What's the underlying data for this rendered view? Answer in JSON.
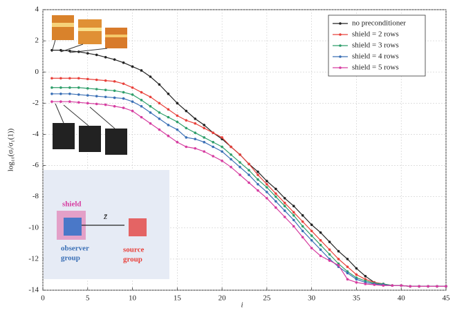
{
  "chart_data": {
    "type": "line",
    "x_label": "i",
    "y_label": "log₁₀(σᵢ/σ₁(1))",
    "x": [
      1,
      2,
      3,
      4,
      5,
      6,
      7,
      8,
      9,
      10,
      11,
      12,
      13,
      14,
      15,
      16,
      17,
      18,
      19,
      20,
      21,
      22,
      23,
      24,
      25,
      26,
      27,
      28,
      29,
      30,
      31,
      32,
      33,
      34,
      35,
      36,
      37,
      38,
      39,
      40,
      41,
      42,
      43,
      44,
      45
    ],
    "series": [
      {
        "name": "no preconditioner",
        "color": "#222222",
        "values": [
          1.4,
          1.4,
          1.35,
          1.3,
          1.2,
          1.1,
          0.95,
          0.8,
          0.6,
          0.35,
          0.1,
          -0.3,
          -0.8,
          -1.4,
          -2.0,
          -2.5,
          -3.0,
          -3.4,
          -3.9,
          -4.3,
          -4.8,
          -5.3,
          -5.9,
          -6.4,
          -7.0,
          -7.5,
          -8.1,
          -8.6,
          -9.2,
          -9.8,
          -10.3,
          -10.9,
          -11.5,
          -12.0,
          -12.6,
          -13.1,
          -13.5,
          -13.6,
          -13.7,
          -13.7,
          -13.75,
          -13.75,
          -13.75,
          -13.75,
          -13.75
        ]
      },
      {
        "name": "shield = 2 rows",
        "color": "#e8403a",
        "values": [
          -0.4,
          -0.4,
          -0.4,
          -0.4,
          -0.45,
          -0.5,
          -0.55,
          -0.6,
          -0.75,
          -1.0,
          -1.3,
          -1.6,
          -2.0,
          -2.4,
          -2.8,
          -3.1,
          -3.3,
          -3.6,
          -3.9,
          -4.2,
          -4.8,
          -5.3,
          -5.9,
          -6.6,
          -7.2,
          -7.8,
          -8.4,
          -9.0,
          -9.6,
          -10.2,
          -10.8,
          -11.4,
          -12.0,
          -12.5,
          -13.0,
          -13.3,
          -13.5,
          -13.6,
          -13.7,
          -13.7,
          -13.75,
          -13.75,
          -13.75,
          -13.75,
          -13.75
        ]
      },
      {
        "name": "shield = 3 rows",
        "color": "#2e9e6a",
        "values": [
          -1.0,
          -1.0,
          -1.0,
          -1.0,
          -1.05,
          -1.1,
          -1.15,
          -1.2,
          -1.3,
          -1.45,
          -1.8,
          -2.2,
          -2.6,
          -2.9,
          -3.2,
          -3.6,
          -3.9,
          -4.2,
          -4.5,
          -4.8,
          -5.3,
          -5.8,
          -6.3,
          -6.9,
          -7.4,
          -8.0,
          -8.6,
          -9.2,
          -9.9,
          -10.5,
          -11.1,
          -11.7,
          -12.3,
          -12.8,
          -13.2,
          -13.4,
          -13.55,
          -13.6,
          -13.7,
          -13.7,
          -13.75,
          -13.75,
          -13.75,
          -13.75,
          -13.75
        ]
      },
      {
        "name": "shield = 4 rows",
        "color": "#3a6fb5",
        "values": [
          -1.4,
          -1.4,
          -1.4,
          -1.45,
          -1.5,
          -1.55,
          -1.6,
          -1.65,
          -1.7,
          -1.9,
          -2.2,
          -2.6,
          -3.0,
          -3.4,
          -3.7,
          -4.2,
          -4.3,
          -4.5,
          -4.8,
          -5.1,
          -5.6,
          -6.1,
          -6.6,
          -7.2,
          -7.7,
          -8.3,
          -8.9,
          -9.5,
          -10.2,
          -10.8,
          -11.4,
          -12.0,
          -12.5,
          -12.9,
          -13.3,
          -13.5,
          -13.6,
          -13.65,
          -13.7,
          -13.7,
          -13.75,
          -13.75,
          -13.75,
          -13.75,
          -13.75
        ]
      },
      {
        "name": "shield = 5 rows",
        "color": "#d63ca0",
        "values": [
          -1.9,
          -1.9,
          -1.9,
          -1.95,
          -2.0,
          -2.05,
          -2.1,
          -2.2,
          -2.3,
          -2.5,
          -2.9,
          -3.3,
          -3.7,
          -4.1,
          -4.5,
          -4.8,
          -4.9,
          -5.1,
          -5.4,
          -5.7,
          -6.1,
          -6.6,
          -7.1,
          -7.6,
          -8.1,
          -8.7,
          -9.3,
          -9.9,
          -10.6,
          -11.3,
          -11.8,
          -12.1,
          -12.4,
          -13.3,
          -13.5,
          -13.6,
          -13.65,
          -13.7,
          -13.7,
          -13.7,
          -13.75,
          -13.75,
          -13.75,
          -13.75,
          -13.75
        ]
      }
    ],
    "xlim": [
      0,
      45
    ],
    "xticks": [
      0,
      5,
      10,
      15,
      20,
      25,
      30,
      35,
      40,
      45
    ],
    "ylim": [
      -14,
      4
    ],
    "yticks": [
      -14,
      -12,
      -10,
      -8,
      -6,
      -4,
      -2,
      0,
      2,
      4
    ],
    "grid": true,
    "legend": "upper right",
    "inset": {
      "shield": "shield",
      "vector": "z̄",
      "observer": [
        "observer",
        "group"
      ],
      "source": [
        "source",
        "group"
      ]
    }
  }
}
